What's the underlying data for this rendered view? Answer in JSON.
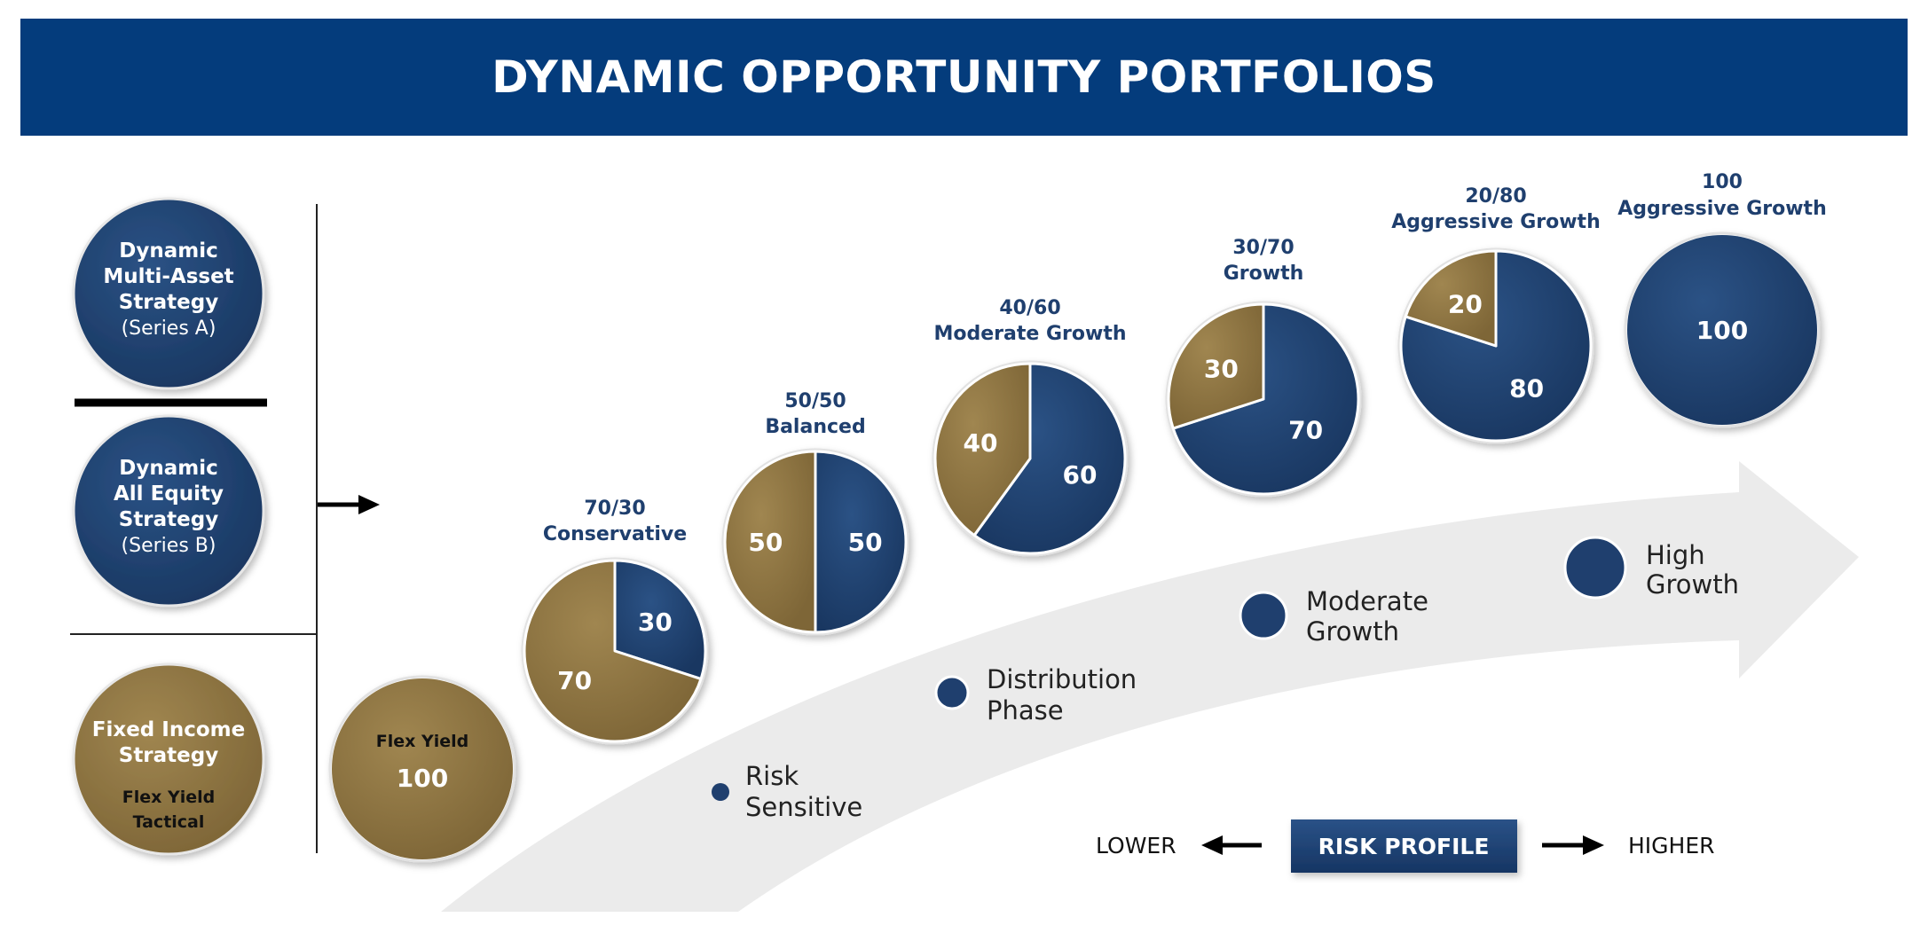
{
  "title": "DYNAMIC OPPORTUNITY PORTFOLIOS",
  "colors": {
    "navy": "#1f3f6e",
    "gold": "#8d7440",
    "banner": "#043c7c",
    "arrow": "#ebebeb"
  },
  "strategies": [
    {
      "lines": [
        "Dynamic",
        "Multi-Asset",
        "Strategy"
      ],
      "sub": [
        "(Series A)"
      ],
      "color": "navy"
    },
    {
      "lines": [
        "Dynamic",
        "All Equity",
        "Strategy"
      ],
      "sub": [
        "(Series B)"
      ],
      "color": "navy"
    },
    {
      "lines": [
        "Fixed Income",
        "Strategy"
      ],
      "sub": [
        "Flex Yield",
        "Tactical"
      ],
      "color": "gold"
    }
  ],
  "chart_data": {
    "type": "pie",
    "series_names": [
      "Fixed Income",
      "Equity"
    ],
    "pies": [
      {
        "label": [
          "",
          ""
        ],
        "inner_label": "Flex Yield",
        "values": {
          "gold": 100,
          "navy": 0
        }
      },
      {
        "label": [
          "70/30",
          "Conservative"
        ],
        "values": {
          "gold": 70,
          "navy": 30
        }
      },
      {
        "label": [
          "50/50",
          "Balanced"
        ],
        "values": {
          "gold": 50,
          "navy": 50
        }
      },
      {
        "label": [
          "40/60",
          "Moderate Growth"
        ],
        "values": {
          "gold": 40,
          "navy": 60
        }
      },
      {
        "label": [
          "30/70",
          "Growth"
        ],
        "values": {
          "gold": 30,
          "navy": 70
        }
      },
      {
        "label": [
          "20/80",
          "Aggressive Growth"
        ],
        "values": {
          "gold": 20,
          "navy": 80
        }
      },
      {
        "label": [
          "100",
          "Aggressive Growth"
        ],
        "values": {
          "gold": 0,
          "navy": 100
        }
      }
    ],
    "phases": [
      {
        "lines": [
          "Risk",
          "Sensitive"
        ]
      },
      {
        "lines": [
          "Distribution",
          "Phase"
        ]
      },
      {
        "lines": [
          "Moderate",
          "Growth"
        ]
      },
      {
        "lines": [
          "High",
          "Growth"
        ]
      }
    ],
    "risk_profile": {
      "label": "RISK PROFILE",
      "low": "LOWER",
      "high": "HIGHER"
    }
  }
}
